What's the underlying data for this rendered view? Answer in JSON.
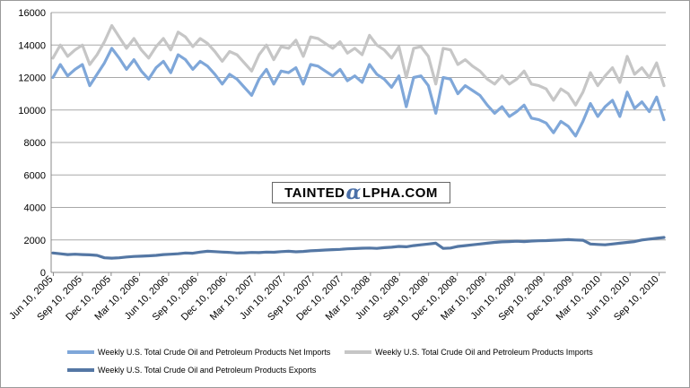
{
  "chart_data": {
    "type": "line",
    "title": "",
    "xlabel": "",
    "ylabel": "",
    "ylim": [
      0,
      16000
    ],
    "yticks": [
      0,
      2000,
      4000,
      6000,
      8000,
      10000,
      12000,
      14000,
      16000
    ],
    "xlim": [
      "2005-06-03",
      "2010-10-01"
    ],
    "x_tick_labels": [
      "Jun 10, 2005",
      "Sep 10, 2005",
      "Dec 10, 2005",
      "Mar 10, 2006",
      "Jun 10, 2006",
      "Sep 10, 2006",
      "Dec 10, 2006",
      "Mar 10, 2007",
      "Jun 10, 2007",
      "Sep 10, 2007",
      "Dec 10, 2007",
      "Mar 10, 2008",
      "Jun 10, 2008",
      "Sep 10, 2008",
      "Dec 10, 2008",
      "Mar 10, 2009",
      "Jun 10, 2009",
      "Sep 10, 2009",
      "Dec 10, 2009",
      "Mar 10, 2010",
      "Jun 10, 2010",
      "Sep 10, 2010"
    ],
    "grid": "horizontal",
    "legend_position": "bottom",
    "sampling": "approximately every 3 weeks",
    "series": [
      {
        "name": "Weekly U.S. Total Crude Oil and Petroleum Products Net Imports",
        "color": "#7fa7d9",
        "values": [
          12000,
          12800,
          12100,
          12500,
          12800,
          11500,
          12200,
          12900,
          13800,
          13200,
          12500,
          13100,
          12400,
          11900,
          12600,
          13000,
          12300,
          13400,
          13100,
          12500,
          13000,
          12700,
          12200,
          11600,
          12200,
          11900,
          11400,
          10900,
          11900,
          12500,
          11600,
          12400,
          12300,
          12600,
          11600,
          12800,
          12700,
          12400,
          12100,
          12500,
          11800,
          12100,
          11700,
          12800,
          12200,
          11900,
          11400,
          12100,
          10200,
          12000,
          12100,
          11500,
          9800,
          12000,
          11900,
          11000,
          11500,
          11200,
          10900,
          10300,
          9800,
          10200,
          9600,
          9900,
          10300,
          9500,
          9400,
          9200,
          8600,
          9300,
          9000,
          8400,
          9300,
          10400,
          9600,
          10200,
          10600,
          9600,
          11100,
          10100,
          10500,
          9900,
          10800,
          9400
        ],
        "label_on_chart": false
      },
      {
        "name": "Weekly U.S. Total Crude Oil and Petroleum Products Imports",
        "color": "#c6c6c6",
        "values": [
          13200,
          14000,
          13300,
          13700,
          14000,
          12800,
          13400,
          14200,
          15200,
          14500,
          13800,
          14400,
          13700,
          13200,
          13900,
          14400,
          13700,
          14800,
          14500,
          13900,
          14400,
          14100,
          13600,
          13000,
          13600,
          13400,
          12900,
          12400,
          13400,
          14000,
          13100,
          13900,
          13800,
          14300,
          13300,
          14500,
          14400,
          14100,
          13800,
          14200,
          13500,
          13800,
          13400,
          14600,
          14000,
          13700,
          13200,
          13900,
          12000,
          13800,
          13900,
          13300,
          11600,
          13800,
          13700,
          12800,
          13100,
          12700,
          12400,
          11900,
          11600,
          12100,
          11600,
          11900,
          12400,
          11600,
          11500,
          11300,
          10600,
          11300,
          11000,
          10300,
          11100,
          12300,
          11500,
          12100,
          12600,
          11700,
          13300,
          12200,
          12600,
          12000,
          12900,
          11500
        ],
        "label_on_chart": false
      },
      {
        "name": "Weekly U.S. Total Crude Oil and Petroleum Products Exports",
        "color": "#5477a4",
        "values": [
          1200,
          1150,
          1100,
          1120,
          1100,
          1080,
          1050,
          900,
          880,
          900,
          950,
          980,
          1000,
          1020,
          1050,
          1100,
          1120,
          1150,
          1200,
          1180,
          1250,
          1300,
          1280,
          1250,
          1230,
          1200,
          1210,
          1230,
          1220,
          1250,
          1240,
          1280,
          1300,
          1270,
          1290,
          1330,
          1350,
          1380,
          1400,
          1420,
          1450,
          1470,
          1490,
          1500,
          1480,
          1520,
          1550,
          1600,
          1580,
          1650,
          1700,
          1750,
          1800,
          1480,
          1500,
          1600,
          1650,
          1700,
          1750,
          1800,
          1850,
          1880,
          1900,
          1920,
          1900,
          1930,
          1950,
          1960,
          1980,
          2000,
          2020,
          2000,
          1980,
          1750,
          1720,
          1700,
          1750,
          1800,
          1850,
          1900,
          2000,
          2050,
          2100,
          2150
        ],
        "label_on_chart": false
      }
    ]
  },
  "watermark": {
    "text_before": "TAINTED",
    "alpha_glyph": "α",
    "text_after": "LPHA.COM"
  },
  "legend": {
    "net_imports": "Weekly U.S. Total Crude Oil and Petroleum Products Net Imports",
    "imports": "Weekly U.S. Total Crude Oil and Petroleum Products Imports",
    "exports": "Weekly U.S. Total Crude Oil and Petroleum Products Exports"
  }
}
